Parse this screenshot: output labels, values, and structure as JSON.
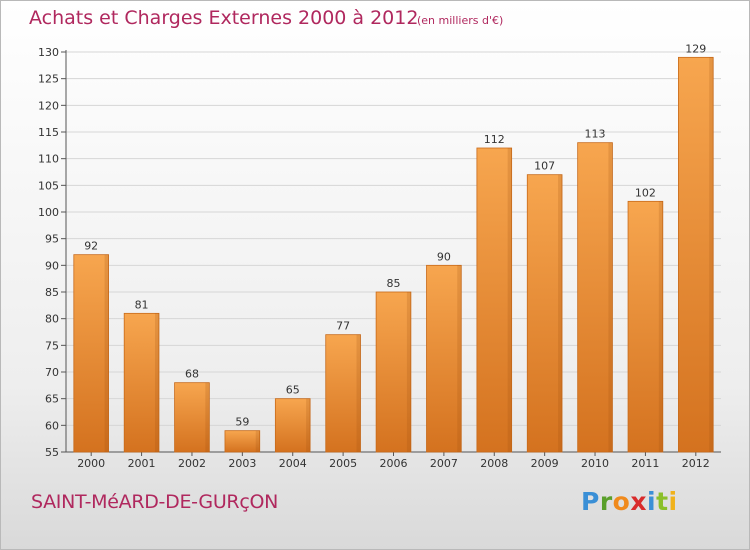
{
  "header": {
    "title": "Achats et Charges Externes 2000 à 2012",
    "subtitle": "(en milliers d'€)"
  },
  "footer": {
    "commune": "SAINT-MéARD-DE-GURçON",
    "brand": [
      {
        "char": "P",
        "color": "#3a8fd6"
      },
      {
        "char": "r",
        "color": "#5a9f2a"
      },
      {
        "char": "o",
        "color": "#f08a1c"
      },
      {
        "char": "x",
        "color": "#d92b2b"
      },
      {
        "char": "i",
        "color": "#3a8fd6"
      },
      {
        "char": "t",
        "color": "#8bbf2a"
      },
      {
        "char": "i",
        "color": "#f0b21c"
      }
    ]
  },
  "colors": {
    "bar_top": "#f7a64f",
    "bar_bottom": "#d4721f",
    "bar_edge": "#c86a1a",
    "grid": "#d6d6d6",
    "title": "#b0285e"
  },
  "chart_data": {
    "type": "bar",
    "categories": [
      "2000",
      "2001",
      "2002",
      "2003",
      "2004",
      "2005",
      "2006",
      "2007",
      "2008",
      "2009",
      "2010",
      "2011",
      "2012"
    ],
    "values": [
      92,
      81,
      68,
      59,
      65,
      77,
      85,
      90,
      112,
      107,
      113,
      102,
      129
    ],
    "title": "Achats et Charges Externes 2000 à 2012",
    "subtitle": "(en milliers d'€)",
    "xlabel": "",
    "ylabel": "",
    "ylim": [
      55,
      130
    ],
    "yticks": [
      55,
      60,
      65,
      70,
      75,
      80,
      85,
      90,
      95,
      100,
      105,
      110,
      115,
      120,
      125,
      130
    ],
    "grid": true,
    "data_labels": true
  }
}
